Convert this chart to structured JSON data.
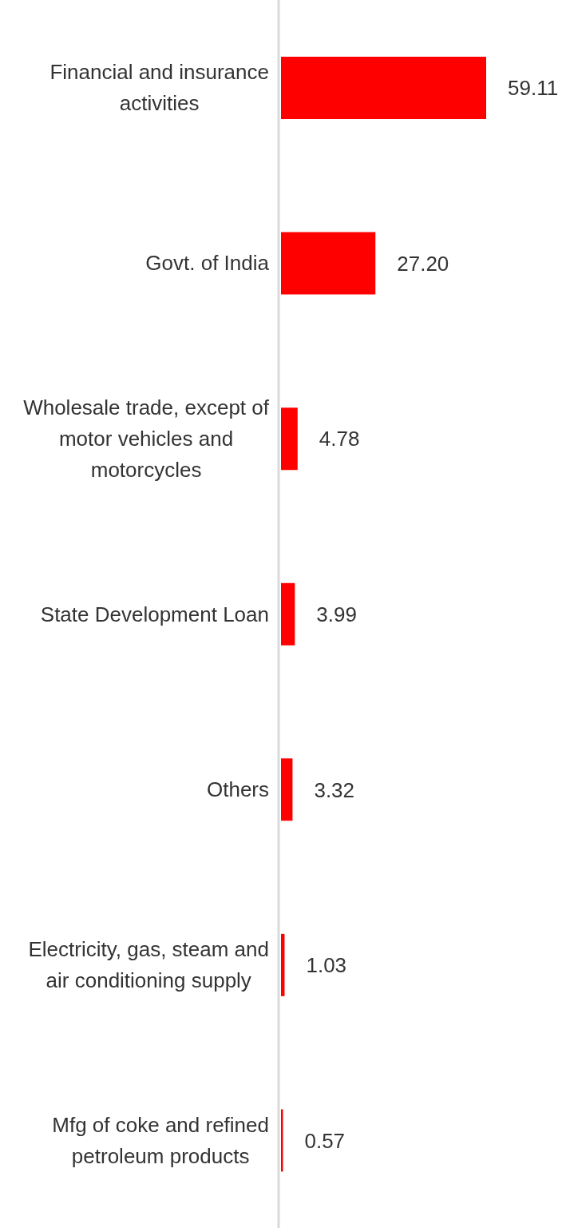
{
  "chart_data": {
    "type": "bar",
    "orientation": "horizontal",
    "categories": [
      "Financial and insurance activities",
      "Govt. of India",
      "Wholesale trade, except of motor vehicles and motorcycles",
      "State Development Loan",
      "Others",
      "Electricity, gas, steam and air conditioning supply",
      "Mfg of coke and refined petroleum products"
    ],
    "values": [
      59.11,
      27.2,
      4.78,
      3.99,
      3.32,
      1.03,
      0.57
    ],
    "value_labels": [
      "59.11",
      "27.20",
      "4.78",
      "3.99",
      "3.32",
      "1.03",
      "0.57"
    ],
    "color": "#ff0000"
  }
}
